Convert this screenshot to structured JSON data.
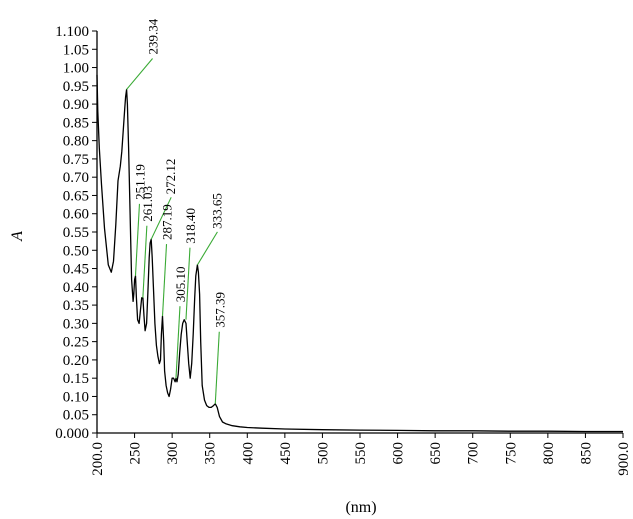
{
  "chart_data": {
    "type": "line",
    "xlabel": "(nm)",
    "ylabel": "A",
    "xlim": [
      200,
      900
    ],
    "ylim": [
      0,
      1.1
    ],
    "grid": false,
    "x_ticks": [
      "200.0",
      "250",
      "300",
      "350",
      "400",
      "450",
      "500",
      "550",
      "600",
      "650",
      "700",
      "750",
      "800",
      "850",
      "900.0"
    ],
    "y_ticks": [
      "0.000",
      "0.05",
      "0.10",
      "0.15",
      "0.20",
      "0.25",
      "0.30",
      "0.35",
      "0.40",
      "0.45",
      "0.50",
      "0.55",
      "0.60",
      "0.65",
      "0.70",
      "0.75",
      "0.80",
      "0.85",
      "0.90",
      "0.95",
      "1.00",
      "1.05",
      "1.100"
    ],
    "series": [
      {
        "x": [
          200,
          201,
          203,
          206,
          210,
          215,
          219,
          222,
          225,
          228,
          231,
          233,
          235,
          237,
          238,
          239.34,
          240.5,
          242,
          244,
          246,
          248,
          249,
          250,
          251.19,
          252.5,
          254,
          256,
          258,
          259.5,
          261.03,
          262.5,
          264,
          266,
          268,
          269.5,
          270.7,
          272.12,
          273.5,
          275,
          277,
          279,
          281,
          283,
          284.5,
          285.7,
          287.19,
          288.7,
          290,
          292,
          294,
          296,
          298,
          300,
          302,
          304,
          305.1,
          306.5,
          308,
          310,
          312,
          314,
          316,
          318.4,
          320,
          322,
          324,
          326,
          328,
          330,
          331.5,
          333.65,
          335,
          336.5,
          338,
          340,
          343,
          346,
          349,
          352,
          355,
          357.39,
          360,
          363,
          367,
          372,
          380,
          390,
          400,
          420,
          450,
          500,
          550,
          600,
          650,
          700,
          750,
          800,
          850,
          900
        ],
        "y": [
          0.98,
          0.88,
          0.78,
          0.68,
          0.56,
          0.46,
          0.44,
          0.47,
          0.57,
          0.69,
          0.73,
          0.77,
          0.83,
          0.89,
          0.92,
          0.94,
          0.9,
          0.78,
          0.6,
          0.42,
          0.36,
          0.38,
          0.42,
          0.43,
          0.37,
          0.31,
          0.3,
          0.34,
          0.37,
          0.37,
          0.32,
          0.28,
          0.3,
          0.4,
          0.48,
          0.52,
          0.53,
          0.48,
          0.4,
          0.3,
          0.24,
          0.21,
          0.19,
          0.2,
          0.27,
          0.32,
          0.25,
          0.17,
          0.13,
          0.11,
          0.1,
          0.12,
          0.15,
          0.15,
          0.14,
          0.15,
          0.14,
          0.16,
          0.22,
          0.27,
          0.3,
          0.31,
          0.3,
          0.25,
          0.19,
          0.15,
          0.19,
          0.27,
          0.37,
          0.43,
          0.46,
          0.44,
          0.38,
          0.25,
          0.13,
          0.09,
          0.075,
          0.07,
          0.07,
          0.075,
          0.08,
          0.07,
          0.045,
          0.03,
          0.025,
          0.02,
          0.017,
          0.015,
          0.013,
          0.011,
          0.009,
          0.008,
          0.007,
          0.006,
          0.006,
          0.005,
          0.005,
          0.004,
          0.004
        ]
      }
    ],
    "annotations": [
      {
        "text": "239.34",
        "x": 239.34,
        "y": 0.94
      },
      {
        "text": "251.19",
        "x": 251.19,
        "y": 0.43
      },
      {
        "text": "261.03",
        "x": 261.03,
        "y": 0.37
      },
      {
        "text": "272.12",
        "x": 272.12,
        "y": 0.53
      },
      {
        "text": "287.19",
        "x": 287.19,
        "y": 0.32
      },
      {
        "text": "305.10",
        "x": 305.1,
        "y": 0.15
      },
      {
        "text": "318.40",
        "x": 318.4,
        "y": 0.31
      },
      {
        "text": "333.65",
        "x": 333.65,
        "y": 0.46
      },
      {
        "text": "357.39",
        "x": 357.39,
        "y": 0.08
      }
    ],
    "colors": {
      "line": "#000000",
      "leader": "#3aaa35",
      "axis": "#000000"
    }
  }
}
